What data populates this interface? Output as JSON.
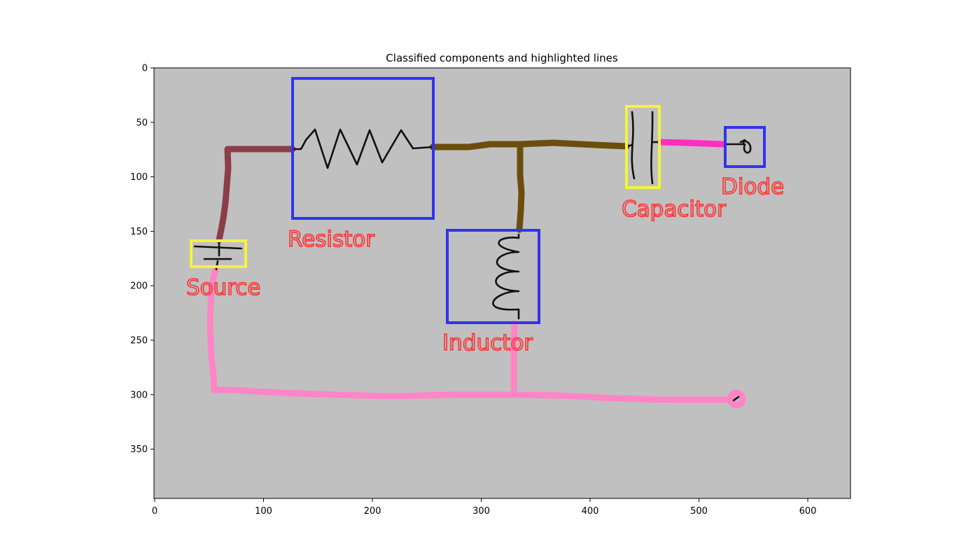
{
  "figure": {
    "title": "Classified components and highlighted lines",
    "background_color": "#c0c0c0",
    "x_ticks": [
      0,
      100,
      200,
      300,
      400,
      500,
      600
    ],
    "y_ticks": [
      0,
      50,
      100,
      150,
      200,
      250,
      300,
      350
    ]
  },
  "components": [
    {
      "label": "Resistor",
      "box_color": "#3333ee"
    },
    {
      "label": "Inductor",
      "box_color": "#3333ee"
    },
    {
      "label": "Diode",
      "box_color": "#3333ee"
    },
    {
      "label": "Capacitor",
      "box_color": "#f4f43c"
    },
    {
      "label": "Source",
      "box_color": "#f4f43c"
    }
  ],
  "lines": [
    {
      "color": "#8b3e48"
    },
    {
      "color": "#6b4e0c"
    },
    {
      "color": "#ff2ec0"
    },
    {
      "color": "#ff85c6"
    }
  ],
  "label_color": "#ff3030"
}
